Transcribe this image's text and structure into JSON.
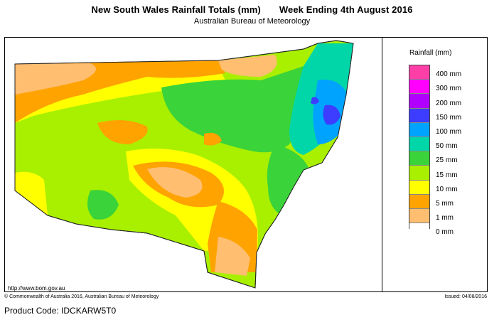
{
  "header": {
    "title_left": "New South Wales Rainfall Totals (mm)",
    "title_right": "Week Ending 4th August 2016",
    "subtitle": "Australian Bureau of Meteorology"
  },
  "map": {
    "region": "New South Wales",
    "url_label": "http://www.bom.gov.au"
  },
  "legend": {
    "title": "Rainfall (mm)",
    "items": [
      {
        "label": "400 mm",
        "color": "#ff3fa8"
      },
      {
        "label": "300 mm",
        "color": "#ff00ff"
      },
      {
        "label": "200 mm",
        "color": "#b100ff"
      },
      {
        "label": "150 mm",
        "color": "#3d3dff"
      },
      {
        "label": "100 mm",
        "color": "#00a4ff"
      },
      {
        "label": "50 mm",
        "color": "#00d6a8"
      },
      {
        "label": "25 mm",
        "color": "#3ad33a"
      },
      {
        "label": "15 mm",
        "color": "#a8f000"
      },
      {
        "label": "10 mm",
        "color": "#ffff00"
      },
      {
        "label": "5 mm",
        "color": "#ffa300"
      },
      {
        "label": "1 mm",
        "color": "#ffbe70"
      },
      {
        "label": "0 mm",
        "color": "#ffffff"
      }
    ]
  },
  "footer": {
    "copyright": "© Commonwealth of Australia 2016, Australian Bureau of Meteorology",
    "issued": "Issued: 04/08/2016",
    "product_code": "Product Code: IDCKARW5T0"
  }
}
